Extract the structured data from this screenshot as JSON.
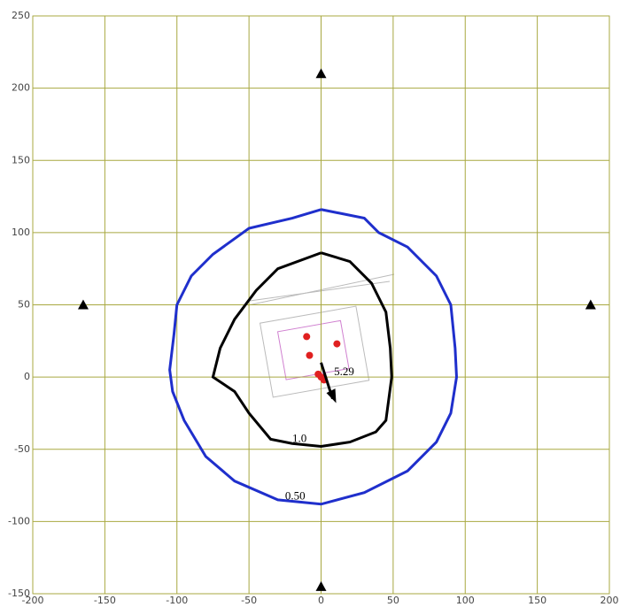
{
  "chart_data": {
    "type": "contour",
    "xlim": [
      -200,
      200
    ],
    "ylim": [
      -150,
      250
    ],
    "xticks": [
      -200,
      -150,
      -100,
      -50,
      0,
      50,
      100,
      150,
      200
    ],
    "yticks": [
      -150,
      -100,
      -50,
      0,
      50,
      100,
      150,
      200,
      250
    ],
    "grid": true,
    "grid_color": "#a8a840",
    "series": [
      {
        "name": "0.50",
        "color": "#1f2fcc",
        "x": [
          0,
          30,
          40,
          60,
          80,
          90,
          93,
          94,
          90,
          80,
          60,
          30,
          0,
          -30,
          -60,
          -80,
          -95,
          -103,
          -105,
          -102,
          -100,
          -90,
          -75,
          -50,
          -20,
          0
        ],
        "y": [
          116,
          110,
          100,
          90,
          70,
          50,
          20,
          0,
          -25,
          -45,
          -65,
          -80,
          -88,
          -85,
          -72,
          -55,
          -30,
          -10,
          5,
          30,
          50,
          70,
          85,
          103,
          110,
          116
        ]
      },
      {
        "name": "1.0",
        "color": "#000000",
        "x": [
          0,
          20,
          35,
          45,
          48,
          49,
          45,
          38,
          20,
          0,
          -20,
          -35,
          -50,
          -60,
          -75,
          -70,
          -60,
          -45,
          -30,
          0
        ],
        "y": [
          86,
          80,
          65,
          45,
          20,
          0,
          -30,
          -38,
          -45,
          -48,
          -46,
          -43,
          -25,
          -10,
          0,
          20,
          40,
          60,
          75,
          86
        ]
      }
    ],
    "markers": {
      "color": "#000000",
      "x": [
        0,
        -165,
        187,
        0
      ],
      "y": [
        210,
        50,
        50,
        -145
      ]
    },
    "points": {
      "color": "#e02020",
      "x": [
        -10,
        11,
        -8,
        0,
        -2,
        2
      ],
      "y": [
        28,
        23,
        15,
        0,
        2,
        -2
      ]
    },
    "annotations": [
      {
        "text": "5.29",
        "x": 16,
        "y": 3
      },
      {
        "text": "1.0",
        "x": -15,
        "y": -43
      },
      {
        "text": "0.50",
        "x": -18,
        "y": -83
      }
    ]
  }
}
